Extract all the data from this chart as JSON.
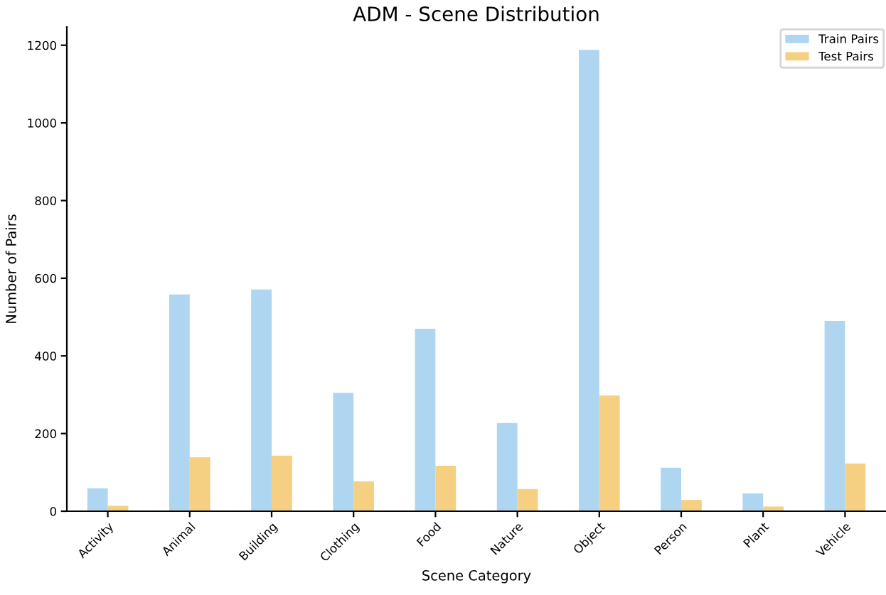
{
  "chart_data": {
    "type": "bar",
    "title": "ADM - Scene Distribution",
    "xlabel": "Scene Category",
    "ylabel": "Number of Pairs",
    "categories": [
      "Activity",
      "Animal",
      "Building",
      "Clothing",
      "Food",
      "Nature",
      "Object",
      "Person",
      "Plant",
      "Vehicle"
    ],
    "series": [
      {
        "name": "Train Pairs",
        "color": "#aed6f1",
        "values": [
          59,
          558,
          571,
          305,
          470,
          227,
          1188,
          112,
          46,
          490
        ]
      },
      {
        "name": "Test Pairs",
        "color": "#f5d082",
        "values": [
          14,
          139,
          143,
          77,
          117,
          57,
          298,
          29,
          12,
          123
        ]
      }
    ],
    "ylim": [
      0,
      1247
    ],
    "yticks": [
      0,
      200,
      400,
      600,
      800,
      1000,
      1200
    ],
    "grid": false,
    "legend": "top right"
  }
}
